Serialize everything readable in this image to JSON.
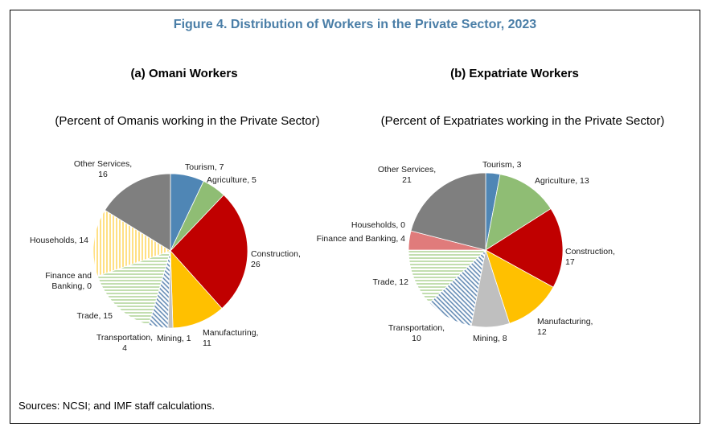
{
  "figure_title": "Figure 4. Distribution of Workers in the Private Sector, 2023",
  "source": "Sources: NCSI; and IMF staff calculations.",
  "colors": {
    "Tourism": "#4f86b5",
    "Agriculture": "#8fbd74",
    "Construction": "#c00000",
    "Manufacturing": "#ffc000",
    "Mining": "#bfbfbf",
    "Transportation": "#5a84b0",
    "Trade": "#a9d18e",
    "Finance and Banking": "#e07b7b",
    "Households": "#ffd966",
    "Other Services": "#7f7f7f"
  },
  "chart_data": [
    {
      "type": "pie",
      "title": "(a) Omani Workers",
      "subtitle": "(Percent of Omanis working in the Private Sector)",
      "slices": [
        {
          "category": "Tourism",
          "value": 7,
          "label": [
            "Tourism, 7"
          ]
        },
        {
          "category": "Agriculture",
          "value": 5,
          "label": [
            "Agriculture, 5"
          ]
        },
        {
          "category": "Construction",
          "value": 26,
          "label": [
            "Construction,",
            "26"
          ]
        },
        {
          "category": "Manufacturing",
          "value": 11,
          "label": [
            "Manufacturing,",
            "11"
          ]
        },
        {
          "category": "Mining",
          "value": 1,
          "label": [
            "Mining, 1"
          ]
        },
        {
          "category": "Transportation",
          "value": 4,
          "label": [
            "Transportation,",
            "4"
          ]
        },
        {
          "category": "Trade",
          "value": 15,
          "label": [
            "Trade, 15"
          ]
        },
        {
          "category": "Finance and Banking",
          "value": 0,
          "label": [
            "Finance and",
            "Banking, 0"
          ]
        },
        {
          "category": "Households",
          "value": 14,
          "label": [
            "Households, 14"
          ]
        },
        {
          "category": "Other Services",
          "value": 16,
          "label": [
            "Other Services,",
            "16"
          ]
        }
      ]
    },
    {
      "type": "pie",
      "title": "(b) Expatriate Workers",
      "subtitle": "(Percent of Expatriates working in the Private Sector)",
      "slices": [
        {
          "category": "Tourism",
          "value": 3,
          "label": [
            "Tourism, 3"
          ]
        },
        {
          "category": "Agriculture",
          "value": 13,
          "label": [
            "Agriculture, 13"
          ]
        },
        {
          "category": "Construction",
          "value": 17,
          "label": [
            "Construction,",
            "17"
          ]
        },
        {
          "category": "Manufacturing",
          "value": 12,
          "label": [
            "Manufacturing,",
            "12"
          ]
        },
        {
          "category": "Mining",
          "value": 8,
          "label": [
            "Mining, 8"
          ]
        },
        {
          "category": "Transportation",
          "value": 10,
          "label": [
            "Transportation,",
            "10"
          ]
        },
        {
          "category": "Trade",
          "value": 12,
          "label": [
            "Trade, 12"
          ]
        },
        {
          "category": "Finance and Banking",
          "value": 4,
          "label": [
            "Finance and Banking, 4"
          ]
        },
        {
          "category": "Households",
          "value": 0,
          "label": [
            "Households, 0"
          ]
        },
        {
          "category": "Other Services",
          "value": 21,
          "label": [
            "Other Services,",
            "21"
          ]
        }
      ]
    }
  ]
}
